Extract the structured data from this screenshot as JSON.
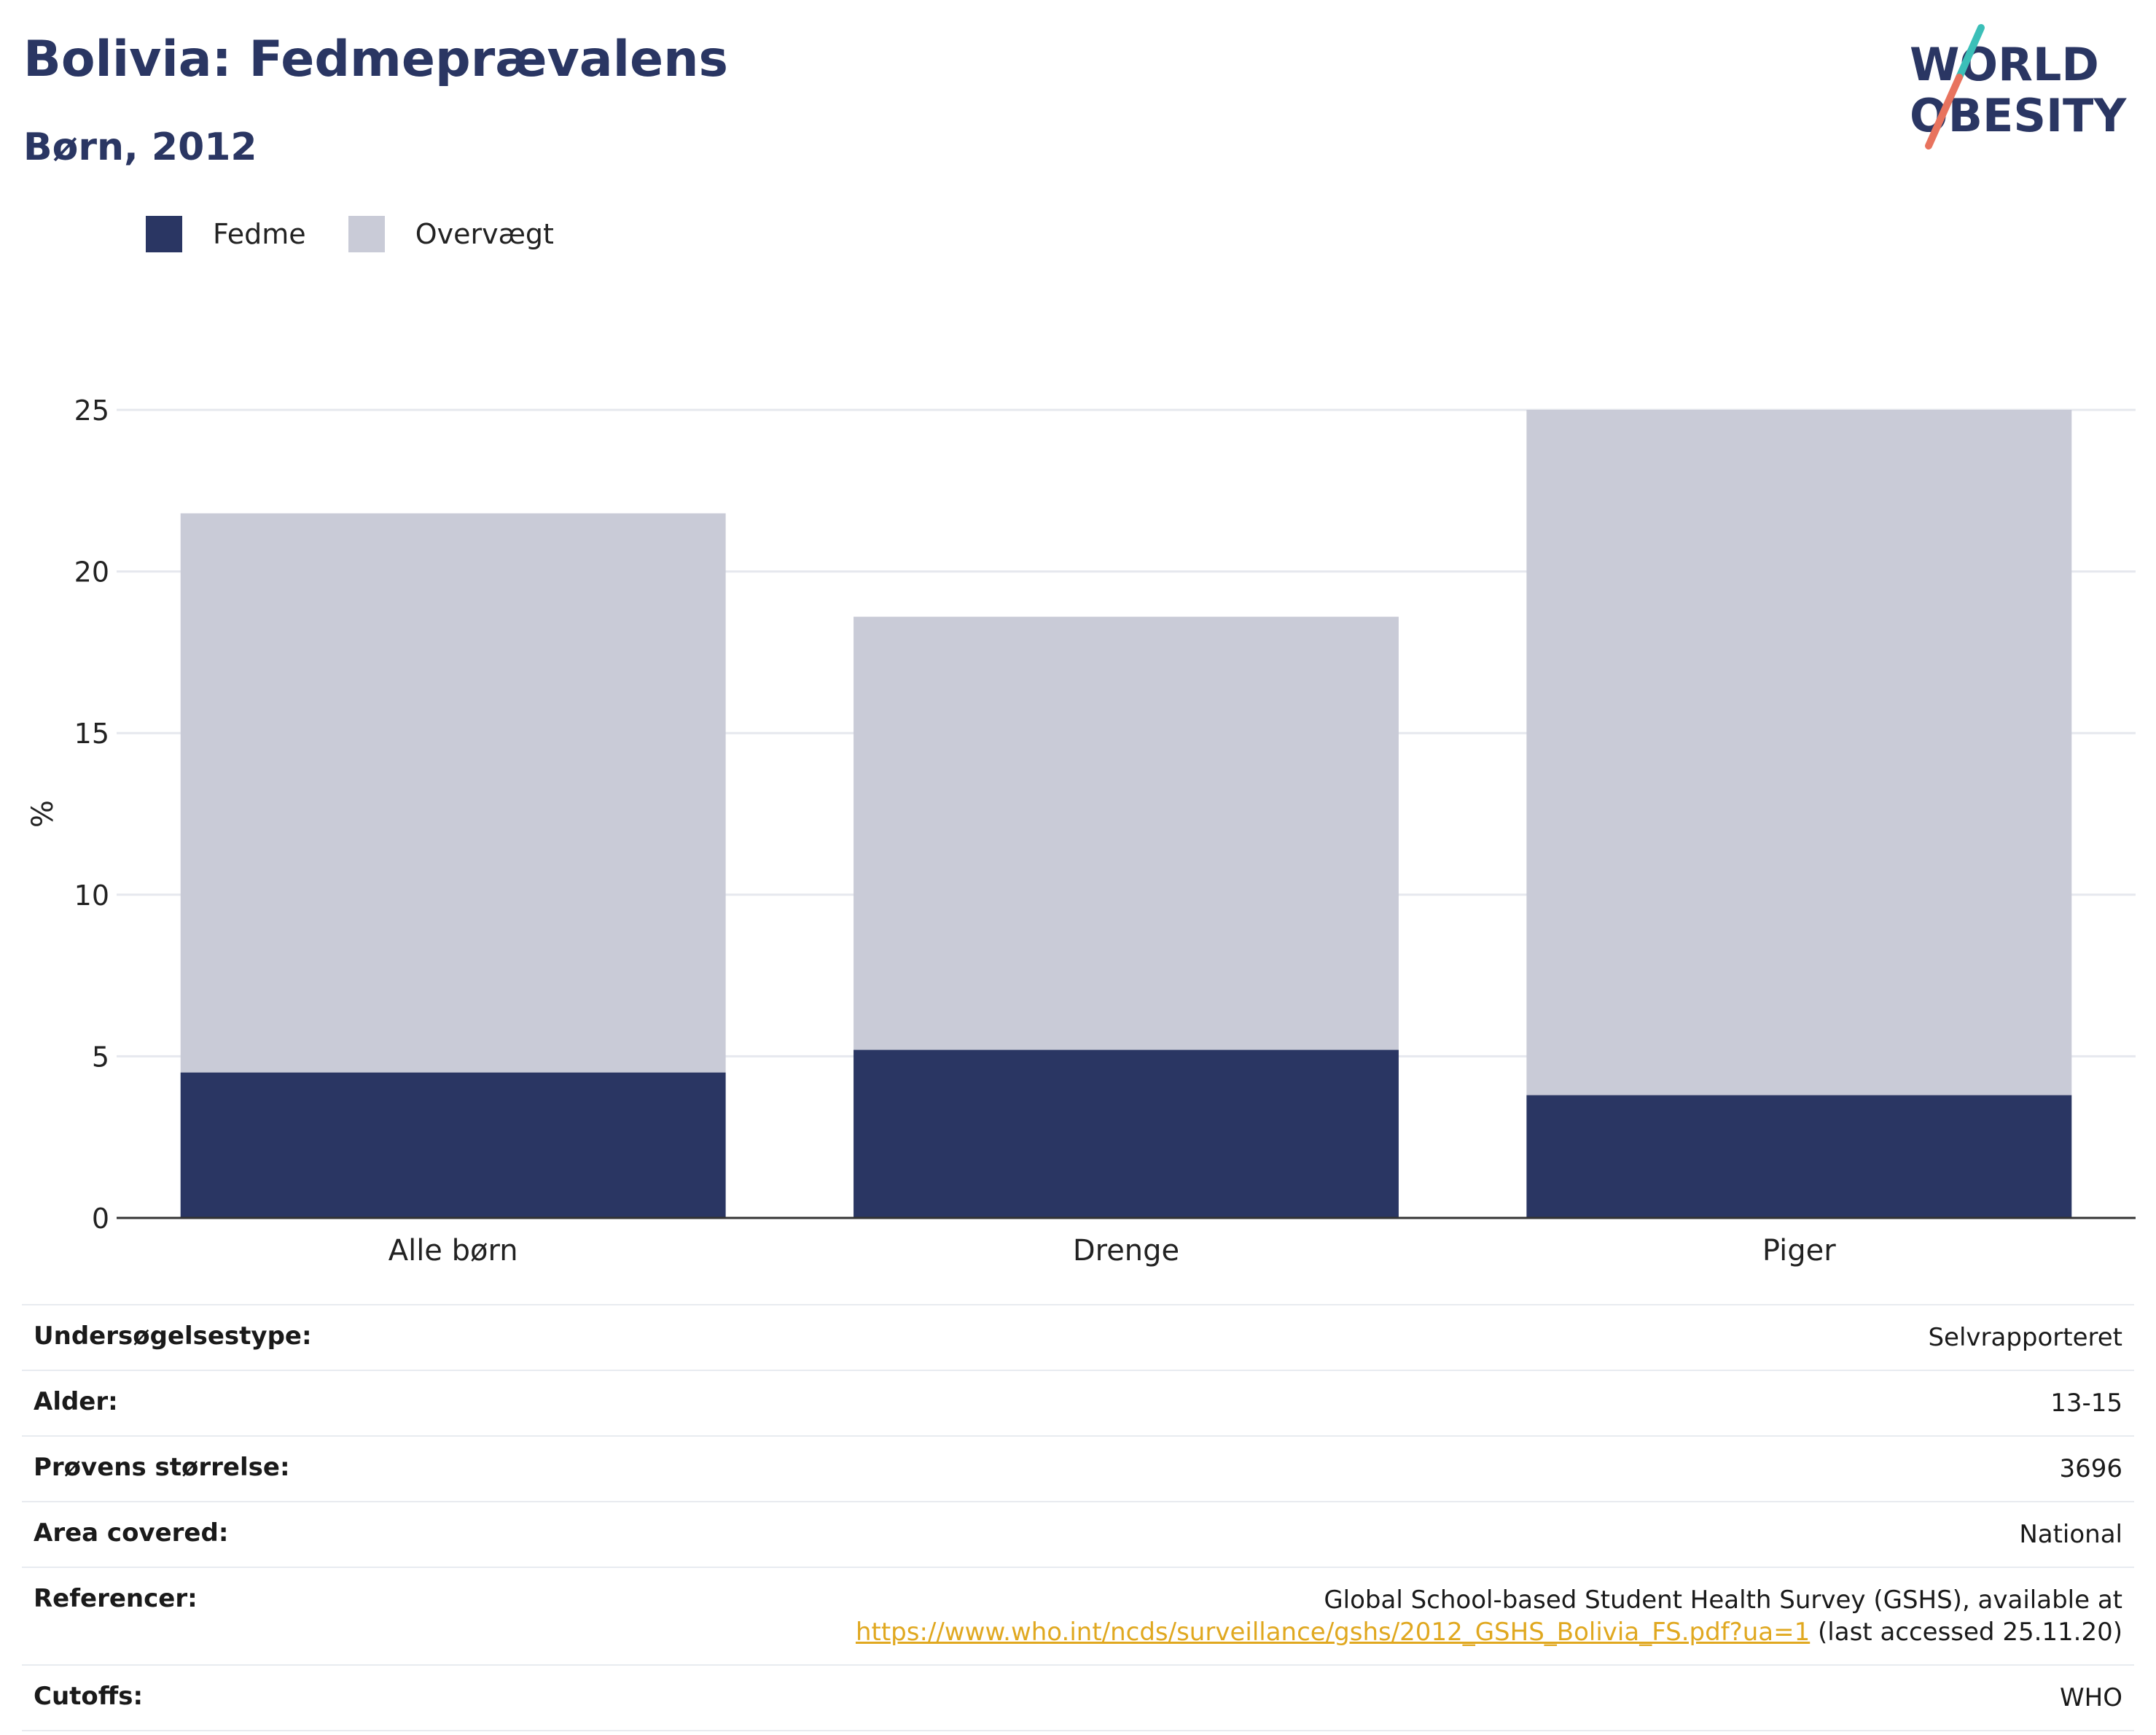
{
  "title": "Bolivia: Fedmeprævalens",
  "subtitle": "Børn, 2012",
  "logo": {
    "line1": "WORLD",
    "line2": "OBESITY",
    "color_primary": "#2a3663",
    "color_teal": "#3bbfb8",
    "color_coral": "#e8735e"
  },
  "legend": [
    {
      "label": "Fedme",
      "color": "#2a3663"
    },
    {
      "label": "Overvægt",
      "color": "#c9cbd7"
    }
  ],
  "chart_data": {
    "type": "bar",
    "stacked": true,
    "categories": [
      "Alle børn",
      "Drenge",
      "Piger"
    ],
    "series": [
      {
        "name": "Fedme",
        "values": [
          4.5,
          5.2,
          3.8
        ],
        "color": "#2a3663"
      },
      {
        "name": "Overvægt",
        "values": [
          17.3,
          13.4,
          21.2
        ],
        "color": "#c9cbd7"
      }
    ],
    "ylabel": "%",
    "yticks": [
      "0",
      "5",
      "10",
      "15",
      "20",
      "25"
    ],
    "ylim": [
      0,
      25
    ],
    "grid": true
  },
  "info": [
    {
      "key": "Undersøgelsestype:",
      "value": "Selvrapporteret"
    },
    {
      "key": "Alder:",
      "value": "13-15"
    },
    {
      "key": "Prøvens størrelse:",
      "value": "3696"
    },
    {
      "key": "Area covered:",
      "value": "National"
    },
    {
      "key": "Referencer:",
      "value": "Global School-based Student Health Survey (GSHS), available at",
      "link": "https://www.who.int/ncds/surveillance/gshs/2012_GSHS_Bolivia_FS.pdf?ua=1",
      "suffix": " (last accessed 25.11.20)"
    },
    {
      "key": "Cutoffs:",
      "value": "WHO"
    }
  ]
}
